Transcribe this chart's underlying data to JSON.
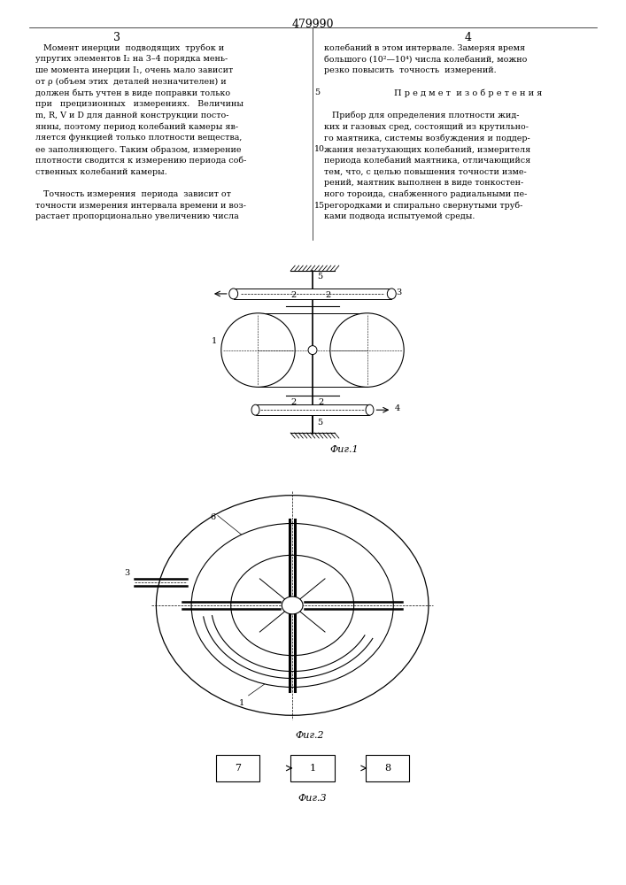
{
  "page_title": "479990",
  "col_left_num": "3",
  "col_right_num": "4",
  "left_col_lines": [
    "   Момент инерции  подводящих  трубок и",
    "упругих элементов I₂ на 3–4 порядка мень-",
    "ше момента инерции I₁, очень мало зависит",
    "от ρ (объем этих  деталей незначителен) и",
    "должен быть учтен в виде поправки только",
    "при   прецизионных   измерениях.   Величины",
    "m, R, V и D для данной конструкции посто-",
    "янны, поэтому период колебаний камеры яв-",
    "ляется функцией только плотности вещества,",
    "ее заполняющего. Таким образом, измерение",
    "плотности сводится к измерению периода соб-",
    "ственных колебаний камеры.",
    "",
    "   Точность измерения  периода  зависит от",
    "точности измерения интервала времени и воз-",
    "растает пропорционально увеличению числа"
  ],
  "right_col_lines": [
    "колебаний в этом интервале. Замеряя время",
    "большого (10²—10⁴) числа колебаний, можно",
    "резко повысить  точность  измерений.",
    "",
    "   Предмет изобретения",
    "",
    "   Прибор для определения плотности жид-",
    "ких и газовых сред, состоящий из крутильно-",
    "го маятника, системы возбуждения и поддер-",
    "жания незатухающих колебаний, измерителя",
    "периода колебаний маятника, отличающийся",
    "тем, что, с целью повышения точности изме-",
    "рений, маятник выполнен в виде тонкостен-",
    "ного тороида, снабженного радиальными пе-",
    "регородками и спирально свернутыми труб-",
    "ками подвода испытуемой среды."
  ],
  "fig1_label": "Фиг.1",
  "fig2_label": "Фиг.2",
  "fig3_label": "Фиг.3",
  "bg_color": "#ffffff",
  "lc": "#000000",
  "tc": "#000000"
}
